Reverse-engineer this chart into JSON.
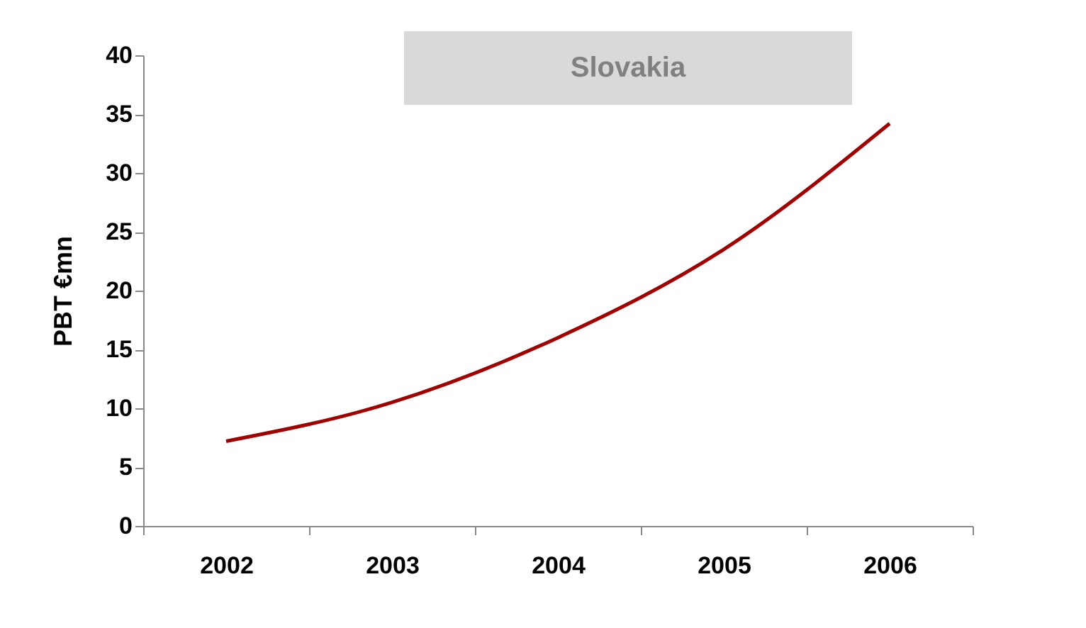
{
  "chart_data": {
    "type": "line",
    "title": "Slovakia",
    "ylabel": "PBT €mn",
    "categories": [
      "2002",
      "2003",
      "2004",
      "2005",
      "2006"
    ],
    "series": [
      {
        "color": "#a00000",
        "values": [
          7.2,
          10.5,
          16,
          23.5,
          34.2
        ]
      }
    ],
    "ylim": [
      0,
      40
    ],
    "yticks": [
      0,
      5,
      10,
      15,
      20,
      25,
      30,
      35,
      40
    ],
    "grid": false
  }
}
